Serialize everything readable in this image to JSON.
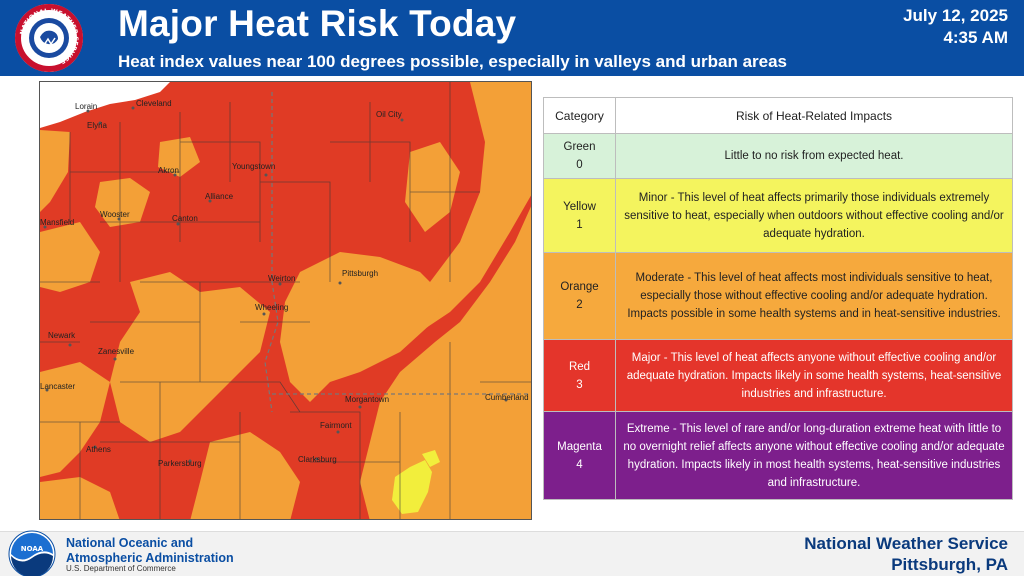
{
  "header": {
    "title": "Major Heat Risk Today",
    "subtitle": "Heat index values near 100 degrees possible, especially in valleys and urban areas",
    "date": "July 12, 2025",
    "time": "4:35 AM",
    "logo_text": "NATIONAL WEATHER SERVICE"
  },
  "map": {
    "cities": [
      "Cleveland",
      "Lorain",
      "Elyria",
      "Oil City",
      "Akron",
      "Youngstown",
      "Alliance",
      "Wooster",
      "Canton",
      "Mansfield",
      "Weirton",
      "Pittsburgh",
      "Newark",
      "Zanesville",
      "Wheeling",
      "Lancaster",
      "Morgantown",
      "Fairmont",
      "Athens",
      "Parkersburg",
      "Clarksburg",
      "Cumberland"
    ],
    "risk_colors": {
      "yellow": "#f2ee3c",
      "orange": "#f3a037",
      "red": "#e03b25"
    }
  },
  "legend": {
    "headers": {
      "category": "Category",
      "risk": "Risk of Heat-Related Impacts"
    },
    "rows": [
      {
        "name": "Green",
        "level": "0",
        "text": "Little to no risk from expected heat."
      },
      {
        "name": "Yellow",
        "level": "1",
        "text": "Minor - This level of heat affects primarily those individuals extremely sensitive to heat, especially when outdoors without effective cooling and/or adequate hydration."
      },
      {
        "name": "Orange",
        "level": "2",
        "text": "Moderate - This level of heat affects most individuals sensitive to heat, especially those without effective cooling and/or adequate hydration. Impacts possible in some health systems and in heat-sensitive industries."
      },
      {
        "name": "Red",
        "level": "3",
        "text": "Major - This level of heat affects anyone without effective cooling and/or adequate hydration. Impacts likely in some health systems, heat-sensitive industries and infrastructure."
      },
      {
        "name": "Magenta",
        "level": "4",
        "text": "Extreme - This level of rare and/or long-duration extreme heat with little to no overnight relief affects anyone without effective cooling and/or adequate hydration. Impacts likely in most health systems, heat-sensitive industries and infrastructure."
      }
    ]
  },
  "footer": {
    "noaa_line1": "National Oceanic and",
    "noaa_line2": "Atmospheric Administration",
    "noaa_dept": "U.S. Department of Commerce",
    "noaa_logo_text": "NOAA",
    "office_line1": "National Weather Service",
    "office_line2": "Pittsburgh, PA"
  }
}
